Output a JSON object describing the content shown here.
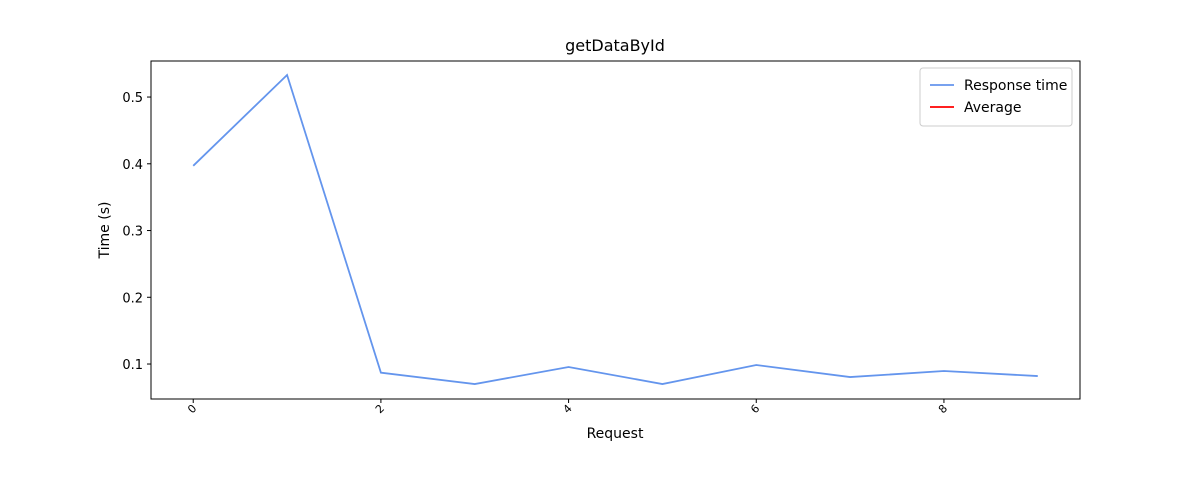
{
  "chart_data": {
    "type": "line",
    "title": "getDataById",
    "xlabel": "Request",
    "ylabel": "Time (s)",
    "x": [
      0,
      1,
      2,
      3,
      4,
      5,
      6,
      7,
      8,
      9
    ],
    "series": [
      {
        "name": "Response time",
        "color": "#6495ed",
        "values": [
          0.397,
          0.533,
          0.087,
          0.07,
          0.0955,
          0.07,
          0.0985,
          0.0805,
          0.0895,
          0.082
        ]
      },
      {
        "name": "Average",
        "color": "#ff0000",
        "values": [
          null,
          null,
          null,
          null,
          null,
          null,
          null,
          null,
          null,
          null
        ]
      }
    ],
    "xlim": [
      -0.45,
      9.45
    ],
    "xticks": [
      0,
      2,
      4,
      6,
      8
    ],
    "ylim": [
      0.0476,
      0.554
    ],
    "yticks": [
      0.1,
      0.2,
      0.3,
      0.4,
      0.5
    ],
    "legend": "upper right",
    "grid": false
  }
}
